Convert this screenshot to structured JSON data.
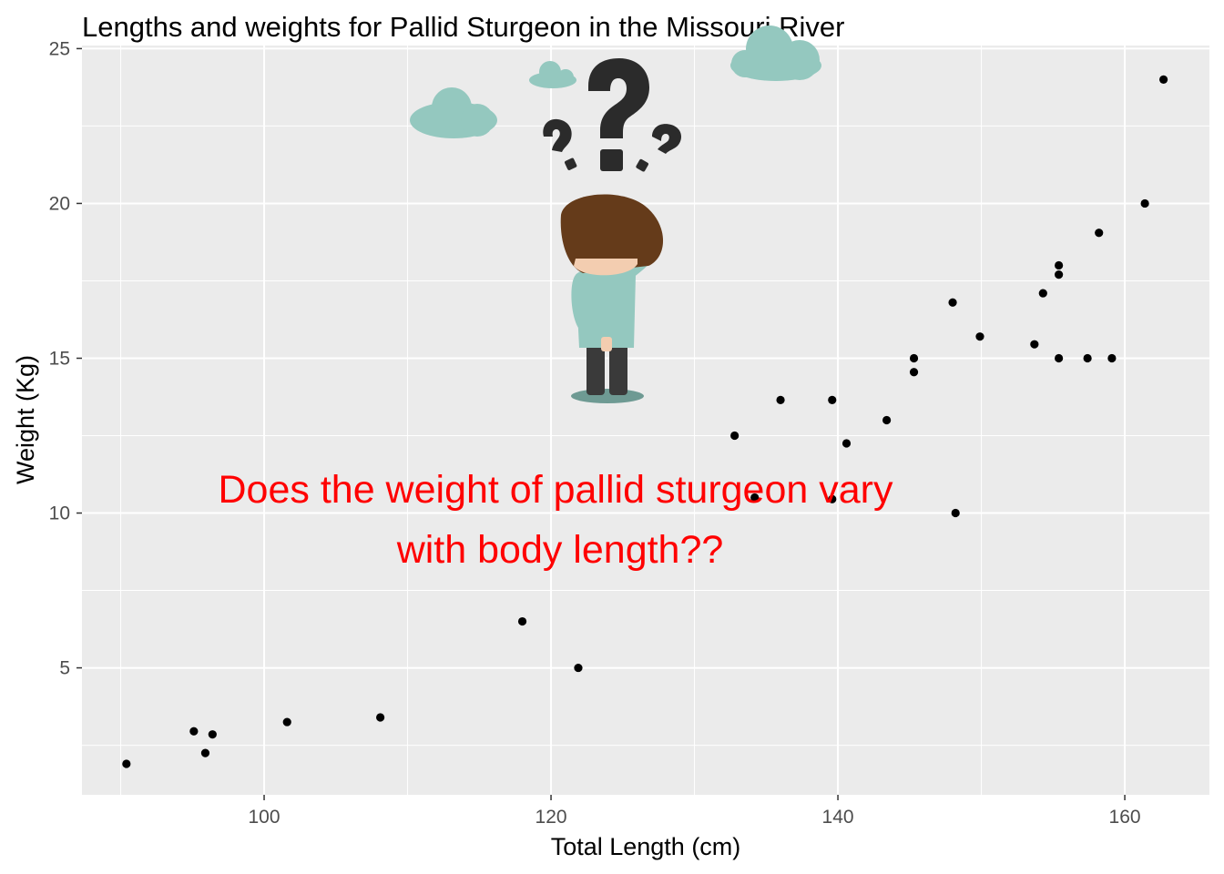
{
  "chart_data": {
    "type": "scatter",
    "title": "Lengths and weights for Pallid Sturgeon in the Missouri River",
    "xlabel": "Total Length (cm)",
    "ylabel": "Weight (Kg)",
    "xlim": [
      87.3,
      165.9
    ],
    "ylim": [
      0.9,
      25.1
    ],
    "xticks": [
      100,
      120,
      140,
      160
    ],
    "yticks": [
      5,
      10,
      15,
      20,
      25
    ],
    "grid": true,
    "panel_background": "#ebebeb",
    "point_color": "#000000",
    "points": [
      {
        "x": 90.4,
        "y": 1.9
      },
      {
        "x": 95.1,
        "y": 2.95
      },
      {
        "x": 95.9,
        "y": 2.25
      },
      {
        "x": 96.4,
        "y": 2.85
      },
      {
        "x": 101.6,
        "y": 3.25
      },
      {
        "x": 108.1,
        "y": 3.4
      },
      {
        "x": 118.0,
        "y": 6.5
      },
      {
        "x": 121.9,
        "y": 5.0
      },
      {
        "x": 132.8,
        "y": 12.5
      },
      {
        "x": 134.2,
        "y": 10.5
      },
      {
        "x": 136.0,
        "y": 13.65
      },
      {
        "x": 139.6,
        "y": 13.65
      },
      {
        "x": 139.6,
        "y": 10.45
      },
      {
        "x": 140.6,
        "y": 12.25
      },
      {
        "x": 143.4,
        "y": 13.0
      },
      {
        "x": 145.3,
        "y": 15.0
      },
      {
        "x": 145.3,
        "y": 14.55
      },
      {
        "x": 148.0,
        "y": 16.8
      },
      {
        "x": 148.2,
        "y": 10.0
      },
      {
        "x": 149.9,
        "y": 15.7
      },
      {
        "x": 153.7,
        "y": 15.45
      },
      {
        "x": 154.3,
        "y": 17.1
      },
      {
        "x": 155.4,
        "y": 18.0
      },
      {
        "x": 155.4,
        "y": 17.7
      },
      {
        "x": 155.4,
        "y": 15.0
      },
      {
        "x": 157.4,
        "y": 15.0
      },
      {
        "x": 158.2,
        "y": 19.05
      },
      {
        "x": 159.1,
        "y": 15.0
      },
      {
        "x": 161.4,
        "y": 20.0
      },
      {
        "x": 162.7,
        "y": 24.0
      }
    ],
    "annotation": {
      "lines": [
        "Does the weight of pallid sturgeon vary",
        "with body length??"
      ],
      "color": "#ff0000"
    }
  },
  "illustration": {
    "name": "confused-person-with-question-marks",
    "cloud_color": "#94c8bf",
    "question_mark_color": "#2b2b2b",
    "hair_color": "#653b1a",
    "shirt_color": "#94c8bf"
  }
}
